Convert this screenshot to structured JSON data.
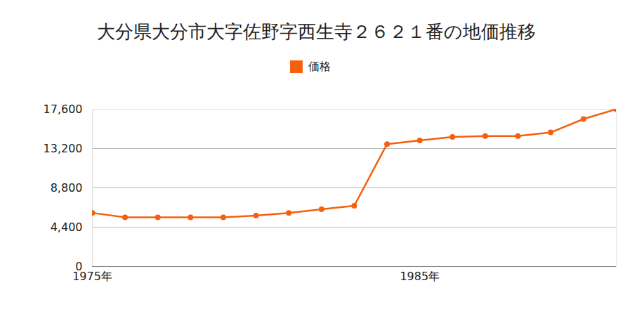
{
  "chart_data": {
    "type": "line",
    "title": "大分県大分市大字佐野字西生寺２６２１番の地価推移",
    "x": [
      1975,
      1976,
      1977,
      1978,
      1979,
      1980,
      1981,
      1982,
      1983,
      1984,
      1985,
      1986,
      1987,
      1988,
      1989,
      1990,
      1991
    ],
    "series": [
      {
        "name": "価格",
        "color": "#f5600f",
        "marker": "circle",
        "values": [
          6000,
          5500,
          5500,
          5500,
          5500,
          5700,
          6000,
          6400,
          6800,
          13700,
          14100,
          14500,
          14600,
          14600,
          15000,
          16500,
          17600
        ]
      }
    ],
    "xlim": [
      1975,
      1991
    ],
    "xticks": [
      {
        "value": 1975,
        "label": "1975年"
      },
      {
        "value": 1985,
        "label": "1985年"
      }
    ],
    "ylim": [
      0,
      17600
    ],
    "yticks": [
      0,
      {
        "value": 4400,
        "label": "4,400"
      },
      {
        "value": 8800,
        "label": "8,800"
      },
      {
        "value": 13200,
        "label": "13,200"
      },
      {
        "value": 17600,
        "label": "17,600"
      }
    ],
    "grid": true,
    "legend": "top"
  }
}
